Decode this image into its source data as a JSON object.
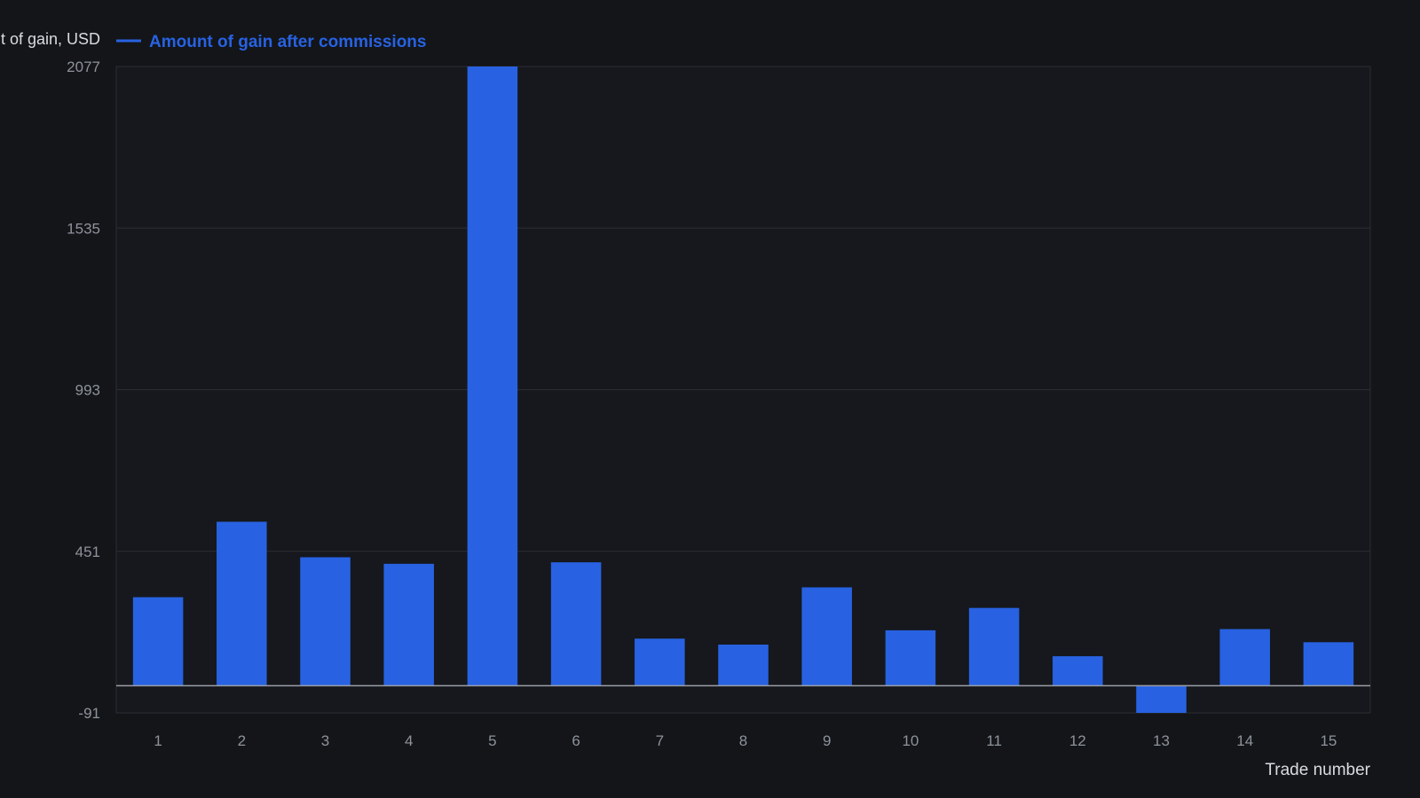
{
  "chart_data": {
    "type": "bar",
    "ylabel": "Amount of gain, USD",
    "xlabel": "Trade number",
    "legend": {
      "placement": "top-left"
    },
    "series": [
      {
        "name": "Amount of gain after commissions",
        "color": "#2862e2",
        "values": [
          297,
          550,
          431,
          409,
          2077,
          414,
          158,
          138,
          330,
          186,
          261,
          99,
          -91,
          190,
          146
        ]
      }
    ],
    "categories": [
      "1",
      "2",
      "3",
      "4",
      "5",
      "6",
      "7",
      "8",
      "9",
      "10",
      "11",
      "12",
      "13",
      "14",
      "15"
    ],
    "ylim": [
      -91,
      2077
    ],
    "yticks": [
      -91,
      451,
      993,
      1535,
      2077
    ],
    "grid": true
  }
}
